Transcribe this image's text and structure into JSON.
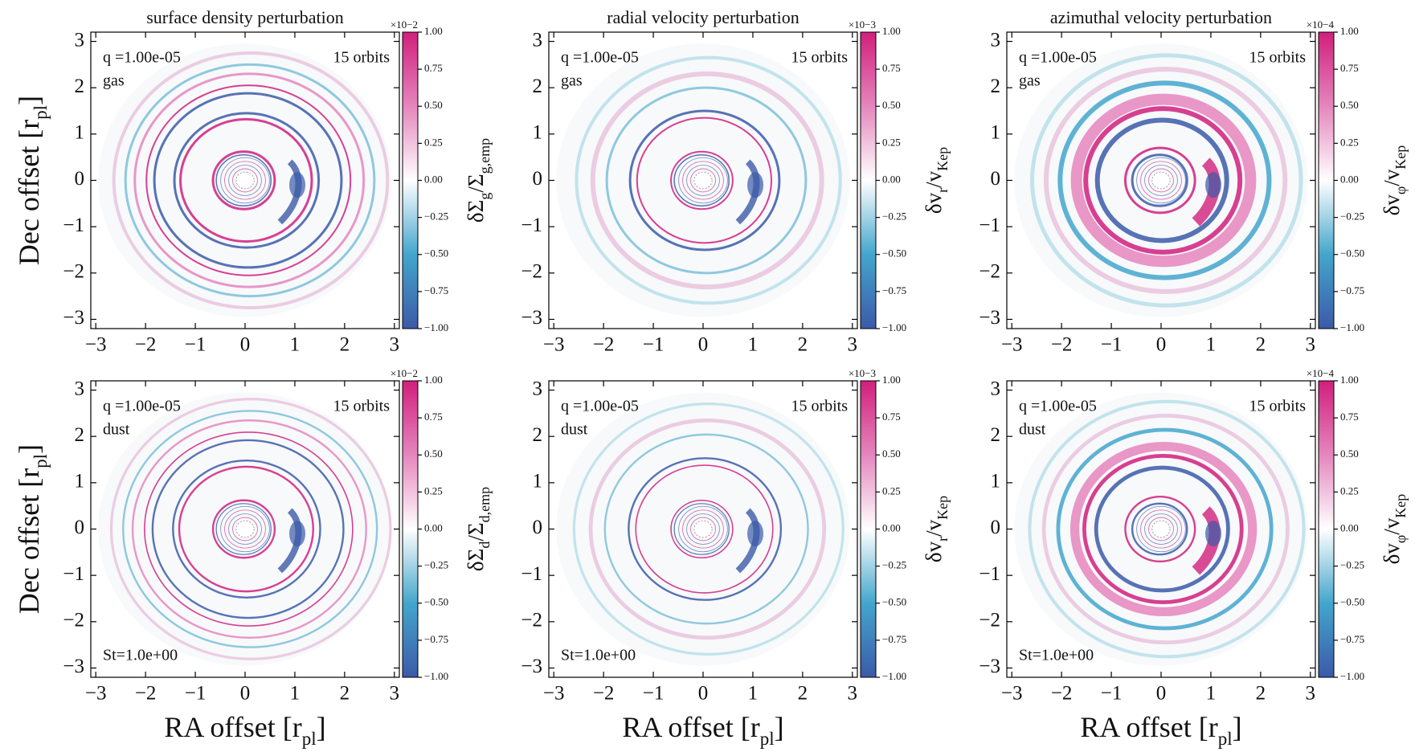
{
  "chart_data": [
    {
      "type": "image",
      "title": "surface density perturbation",
      "ylabel": [
        "Dec offset [r",
        "pl",
        "]"
      ],
      "xlim": [
        -3.1,
        3.1
      ],
      "ylim": [
        -3.2,
        3.2
      ],
      "xticks": [
        {
          "value": -3,
          "label": "−3"
        },
        {
          "value": -2,
          "label": "−2"
        },
        {
          "value": -1,
          "label": "−1"
        },
        0,
        1,
        2,
        3
      ],
      "yticks": [
        {
          "value": -3,
          "label": "−3"
        },
        {
          "value": -2,
          "label": "−2"
        },
        {
          "value": -1,
          "label": "−1"
        },
        0,
        1,
        2,
        3
      ],
      "clim": [
        -1,
        1
      ],
      "cmap_colors": [
        "#3b5aa8",
        "#43a6cc",
        "#ffffff",
        "#e586bd",
        "#d11f7c"
      ],
      "cticks": [
        {
          "value": -1,
          "label": "−1.00"
        },
        {
          "value": -0.75,
          "label": "−0.75"
        },
        {
          "value": -0.5,
          "label": "−0.50"
        },
        {
          "value": -0.25,
          "label": "−0.25"
        },
        {
          "value": 0,
          "label": "0.00"
        },
        {
          "value": 0.25,
          "label": "0.25"
        },
        {
          "value": 0.5,
          "label": "0.50"
        },
        {
          "value": 0.75,
          "label": "0.75"
        },
        {
          "value": 1,
          "label": "1.00"
        }
      ],
      "cbar_exponent": "×10−2",
      "cbar_label": [
        "δΣ",
        "g",
        "/Σ",
        "g,emp"
      ],
      "annotations": {
        "q": "q =1.00e-05",
        "orbits": "15 orbits",
        "phase": "gas"
      }
    },
    {
      "type": "image",
      "title": "radial velocity perturbation",
      "xlim": [
        -3.1,
        3.1
      ],
      "ylim": [
        -3.2,
        3.2
      ],
      "xticks": [
        {
          "value": -3,
          "label": "−3"
        },
        {
          "value": -2,
          "label": "−2"
        },
        {
          "value": -1,
          "label": "−1"
        },
        0,
        1,
        2,
        3
      ],
      "yticks": [
        {
          "value": -3,
          "label": "−3"
        },
        {
          "value": -2,
          "label": "−2"
        },
        {
          "value": -1,
          "label": "−1"
        },
        0,
        1,
        2,
        3
      ],
      "clim": [
        -1,
        1
      ],
      "cmap_colors": [
        "#3b5aa8",
        "#43a6cc",
        "#ffffff",
        "#e586bd",
        "#d11f7c"
      ],
      "cticks": [
        {
          "value": -1,
          "label": "−1.00"
        },
        {
          "value": -0.75,
          "label": "−0.75"
        },
        {
          "value": -0.5,
          "label": "−0.50"
        },
        {
          "value": -0.25,
          "label": "−0.25"
        },
        {
          "value": 0,
          "label": "0.00"
        },
        {
          "value": 0.25,
          "label": "0.25"
        },
        {
          "value": 0.5,
          "label": "0.50"
        },
        {
          "value": 0.75,
          "label": "0.75"
        },
        {
          "value": 1,
          "label": "1.00"
        }
      ],
      "cbar_exponent": "×10−3",
      "cbar_label": [
        "δv",
        "r",
        "/v",
        "Kep"
      ],
      "annotations": {
        "q": "q =1.00e-05",
        "orbits": "15 orbits",
        "phase": "gas"
      }
    },
    {
      "type": "image",
      "title": "azimuthal velocity perturbation",
      "xlim": [
        -3.1,
        3.1
      ],
      "ylim": [
        -3.2,
        3.2
      ],
      "xticks": [
        {
          "value": -3,
          "label": "−3"
        },
        {
          "value": -2,
          "label": "−2"
        },
        {
          "value": -1,
          "label": "−1"
        },
        0,
        1,
        2,
        3
      ],
      "yticks": [
        {
          "value": -3,
          "label": "−3"
        },
        {
          "value": -2,
          "label": "−2"
        },
        {
          "value": -1,
          "label": "−1"
        },
        0,
        1,
        2,
        3
      ],
      "clim": [
        -1,
        1
      ],
      "cmap_colors": [
        "#3b5aa8",
        "#43a6cc",
        "#ffffff",
        "#e586bd",
        "#d11f7c"
      ],
      "cticks": [
        {
          "value": -1,
          "label": "−1.00"
        },
        {
          "value": -0.75,
          "label": "−0.75"
        },
        {
          "value": -0.5,
          "label": "−0.50"
        },
        {
          "value": -0.25,
          "label": "−0.25"
        },
        {
          "value": 0,
          "label": "0.00"
        },
        {
          "value": 0.25,
          "label": "0.25"
        },
        {
          "value": 0.5,
          "label": "0.50"
        },
        {
          "value": 0.75,
          "label": "0.75"
        },
        {
          "value": 1,
          "label": "1.00"
        }
      ],
      "cbar_exponent": "×10−4",
      "cbar_label": [
        "δv",
        "φ",
        "/v",
        "Kep"
      ],
      "annotations": {
        "q": "q =1.00e-05",
        "orbits": "15 orbits",
        "phase": "gas"
      }
    },
    {
      "type": "image",
      "xlabel": [
        "RA offset [r",
        "pl",
        "]"
      ],
      "ylabel": [
        "Dec offset [r",
        "pl",
        "]"
      ],
      "xlim": [
        -3.1,
        3.1
      ],
      "ylim": [
        -3.2,
        3.2
      ],
      "xticks": [
        {
          "value": -3,
          "label": "−3"
        },
        {
          "value": -2,
          "label": "−2"
        },
        {
          "value": -1,
          "label": "−1"
        },
        0,
        1,
        2,
        3
      ],
      "yticks": [
        {
          "value": -3,
          "label": "−3"
        },
        {
          "value": -2,
          "label": "−2"
        },
        {
          "value": -1,
          "label": "−1"
        },
        0,
        1,
        2,
        3
      ],
      "clim": [
        -1,
        1
      ],
      "cmap_colors": [
        "#3b5aa8",
        "#43a6cc",
        "#ffffff",
        "#e586bd",
        "#d11f7c"
      ],
      "cticks": [
        {
          "value": -1,
          "label": "−1.00"
        },
        {
          "value": -0.75,
          "label": "−0.75"
        },
        {
          "value": -0.5,
          "label": "−0.50"
        },
        {
          "value": -0.25,
          "label": "−0.25"
        },
        {
          "value": 0,
          "label": "0.00"
        },
        {
          "value": 0.25,
          "label": "0.25"
        },
        {
          "value": 0.5,
          "label": "0.50"
        },
        {
          "value": 0.75,
          "label": "0.75"
        },
        {
          "value": 1,
          "label": "1.00"
        }
      ],
      "cbar_exponent": "×10−2",
      "cbar_label": [
        "δΣ",
        "d",
        "/Σ",
        "d,emp"
      ],
      "annotations": {
        "q": "q =1.00e-05",
        "orbits": "15 orbits",
        "phase": "dust",
        "stokes": "St=1.0e+00"
      }
    },
    {
      "type": "image",
      "xlabel": [
        "RA offset [r",
        "pl",
        "]"
      ],
      "xlim": [
        -3.1,
        3.1
      ],
      "ylim": [
        -3.2,
        3.2
      ],
      "xticks": [
        {
          "value": -3,
          "label": "−3"
        },
        {
          "value": -2,
          "label": "−2"
        },
        {
          "value": -1,
          "label": "−1"
        },
        0,
        1,
        2,
        3
      ],
      "yticks": [
        {
          "value": -3,
          "label": "−3"
        },
        {
          "value": -2,
          "label": "−2"
        },
        {
          "value": -1,
          "label": "−1"
        },
        0,
        1,
        2,
        3
      ],
      "clim": [
        -1,
        1
      ],
      "cmap_colors": [
        "#3b5aa8",
        "#43a6cc",
        "#ffffff",
        "#e586bd",
        "#d11f7c"
      ],
      "cticks": [
        {
          "value": -1,
          "label": "−1.00"
        },
        {
          "value": -0.75,
          "label": "−0.75"
        },
        {
          "value": -0.5,
          "label": "−0.50"
        },
        {
          "value": -0.25,
          "label": "−0.25"
        },
        {
          "value": 0,
          "label": "0.00"
        },
        {
          "value": 0.25,
          "label": "0.25"
        },
        {
          "value": 0.5,
          "label": "0.50"
        },
        {
          "value": 0.75,
          "label": "0.75"
        },
        {
          "value": 1,
          "label": "1.00"
        }
      ],
      "cbar_exponent": "×10−3",
      "cbar_label": [
        "δv",
        "r",
        "/v",
        "Kep"
      ],
      "annotations": {
        "q": "q =1.00e-05",
        "orbits": "15 orbits",
        "phase": "dust",
        "stokes": "St=1.0e+00"
      }
    },
    {
      "type": "image",
      "xlabel": [
        "RA offset [r",
        "pl",
        "]"
      ],
      "xlim": [
        -3.1,
        3.1
      ],
      "ylim": [
        -3.2,
        3.2
      ],
      "xticks": [
        {
          "value": -3,
          "label": "−3"
        },
        {
          "value": -2,
          "label": "−2"
        },
        {
          "value": -1,
          "label": "−1"
        },
        0,
        1,
        2,
        3
      ],
      "yticks": [
        {
          "value": -3,
          "label": "−3"
        },
        {
          "value": -2,
          "label": "−2"
        },
        {
          "value": -1,
          "label": "−1"
        },
        0,
        1,
        2,
        3
      ],
      "clim": [
        -1,
        1
      ],
      "cmap_colors": [
        "#3b5aa8",
        "#43a6cc",
        "#ffffff",
        "#e586bd",
        "#d11f7c"
      ],
      "cticks": [
        {
          "value": -1,
          "label": "−1.00"
        },
        {
          "value": -0.75,
          "label": "−0.75"
        },
        {
          "value": -0.5,
          "label": "−0.50"
        },
        {
          "value": -0.25,
          "label": "−0.25"
        },
        {
          "value": 0,
          "label": "0.00"
        },
        {
          "value": 0.25,
          "label": "0.25"
        },
        {
          "value": 0.5,
          "label": "0.50"
        },
        {
          "value": 0.75,
          "label": "0.75"
        },
        {
          "value": 1,
          "label": "1.00"
        }
      ],
      "cbar_exponent": "×10−4",
      "cbar_label": [
        "δv",
        "φ",
        "/v",
        "Kep"
      ],
      "annotations": {
        "q": "q =1.00e-05",
        "orbits": "15 orbits",
        "phase": "dust",
        "stokes": "St=1.0e+00"
      }
    }
  ]
}
